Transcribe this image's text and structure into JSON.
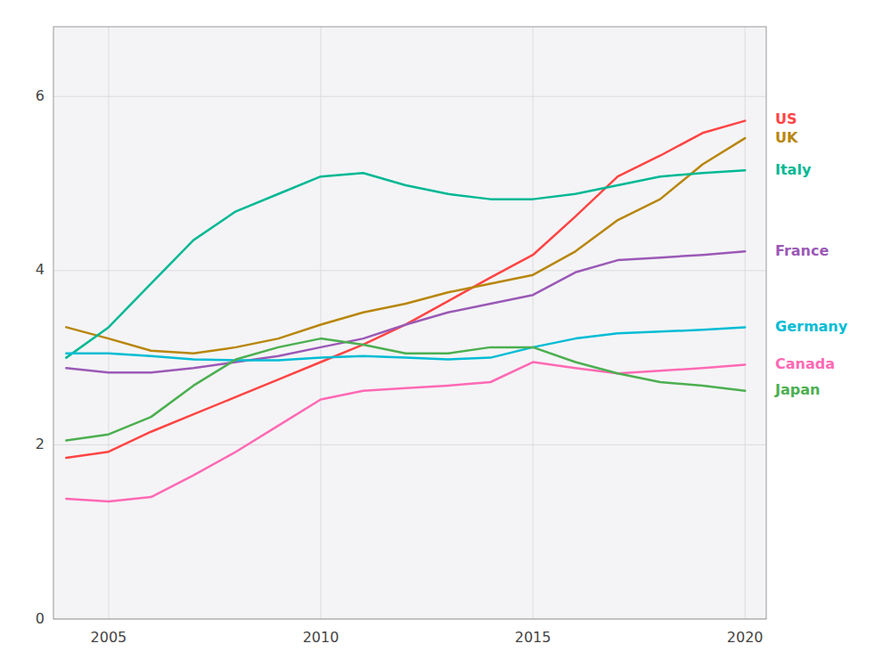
{
  "chart_data": {
    "type": "line",
    "x": [
      2004,
      2005,
      2006,
      2007,
      2008,
      2009,
      2010,
      2011,
      2012,
      2013,
      2014,
      2015,
      2016,
      2017,
      2018,
      2019,
      2020
    ],
    "series": [
      {
        "name": "US",
        "color": "#ff4444",
        "values": [
          1.85,
          1.92,
          2.15,
          2.35,
          2.55,
          2.75,
          2.95,
          3.15,
          3.38,
          3.65,
          3.92,
          4.18,
          4.62,
          5.08,
          5.32,
          5.58,
          5.72
        ]
      },
      {
        "name": "UK",
        "color": "#b8860b",
        "values": [
          3.35,
          3.22,
          3.08,
          3.05,
          3.12,
          3.22,
          3.38,
          3.52,
          3.62,
          3.75,
          3.85,
          3.95,
          4.22,
          4.58,
          4.82,
          5.22,
          5.52
        ]
      },
      {
        "name": "Italy",
        "color": "#00b894",
        "values": [
          3.0,
          3.35,
          3.85,
          4.35,
          4.68,
          4.88,
          5.08,
          5.12,
          4.98,
          4.88,
          4.82,
          4.82,
          4.88,
          4.98,
          5.08,
          5.12,
          5.15
        ]
      },
      {
        "name": "France",
        "color": "#9b59b6",
        "values": [
          2.88,
          2.83,
          2.83,
          2.88,
          2.95,
          3.02,
          3.12,
          3.22,
          3.38,
          3.52,
          3.62,
          3.72,
          3.98,
          4.12,
          4.15,
          4.18,
          4.22
        ]
      },
      {
        "name": "Germany",
        "color": "#00bcd4",
        "values": [
          3.05,
          3.05,
          3.02,
          2.98,
          2.97,
          2.97,
          3.0,
          3.02,
          3.0,
          2.98,
          3.0,
          3.12,
          3.22,
          3.28,
          3.3,
          3.32,
          3.35
        ]
      },
      {
        "name": "Canada",
        "color": "#ff69b4",
        "values": [
          1.38,
          1.35,
          1.4,
          1.65,
          1.92,
          2.22,
          2.52,
          2.62,
          2.65,
          2.68,
          2.72,
          2.95,
          2.88,
          2.82,
          2.85,
          2.88,
          2.92
        ]
      },
      {
        "name": "Japan",
        "color": "#4caf50",
        "values": [
          2.05,
          2.12,
          2.32,
          2.68,
          2.98,
          3.12,
          3.22,
          3.15,
          3.05,
          3.05,
          3.12,
          3.12,
          2.95,
          2.82,
          2.72,
          2.68,
          2.62
        ]
      }
    ],
    "xlim": [
      2003.7,
      2020.5
    ],
    "ylim": [
      0,
      6.8
    ],
    "xticks": [
      2005,
      2010,
      2015,
      2020
    ],
    "yticks": [
      0,
      2,
      4,
      6
    ],
    "grid": true
  }
}
